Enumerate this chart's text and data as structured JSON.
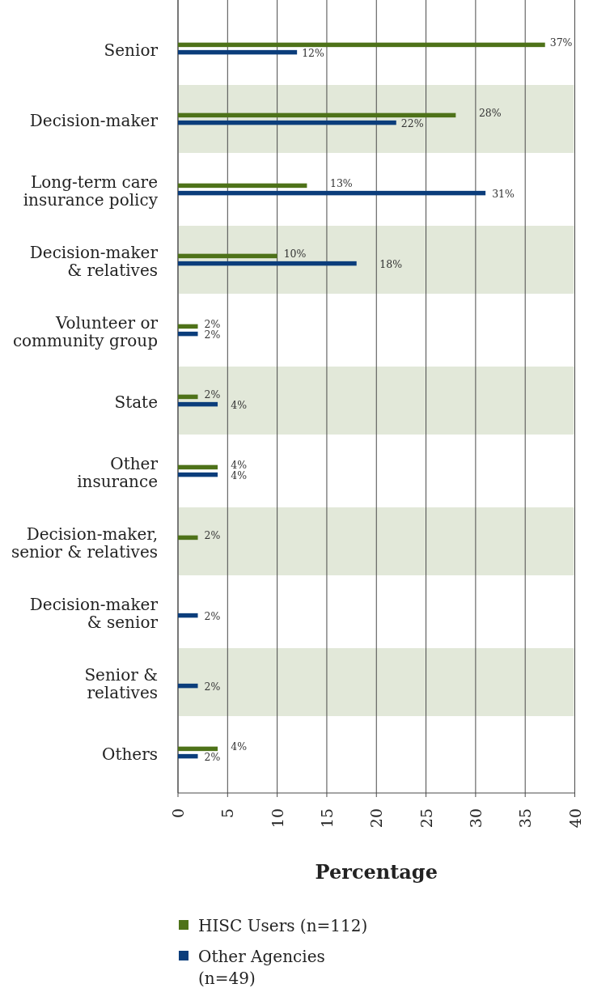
{
  "chart_data": {
    "type": "bar",
    "orientation": "horizontal",
    "categories": [
      "Senior",
      "Decision-maker",
      "Long-term care insurance policy",
      "Decision-maker & relatives",
      "Volunteer or community group",
      "State",
      "Other insurance",
      "Decision-maker, senior & relatives",
      "Decision-maker & senior",
      "Senior & relatives",
      "Others"
    ],
    "series": [
      {
        "name": "HISC Users (n=112)",
        "color": "#4e7219",
        "values": [
          37,
          28,
          13,
          10,
          2,
          2,
          4,
          2,
          null,
          null,
          4
        ],
        "value_labels": [
          "37%",
          "28%",
          "13%",
          "10%",
          "2%",
          "2%",
          "4%",
          "2%",
          null,
          null,
          "4%"
        ]
      },
      {
        "name": "Other Agencies (n=49)",
        "color": "#0b3d7b",
        "values": [
          12,
          22,
          31,
          18,
          2,
          4,
          4,
          null,
          2,
          2,
          2
        ],
        "value_labels": [
          "12%",
          "22%",
          "31%",
          "18%",
          "2%",
          "4%",
          "4%",
          null,
          "2%",
          "2%",
          "2%"
        ]
      }
    ],
    "bands": [
      {
        "axis": "y",
        "from": "Decision-maker",
        "to": "Decision-maker",
        "color": "#e2e8d9"
      },
      {
        "axis": "y",
        "from": "Decision-maker & relatives",
        "to": "Decision-maker & relatives",
        "color": "#e2e8d9"
      },
      {
        "axis": "y",
        "from": "State",
        "to": "State",
        "color": "#e2e8d9"
      },
      {
        "axis": "y",
        "from": "Decision-maker, senior & relatives",
        "to": "Decision-maker, senior & relatives",
        "color": "#e2e8d9"
      },
      {
        "axis": "y",
        "from": "Senior & relatives",
        "to": "Senior & relatives",
        "color": "#e2e8d9"
      }
    ],
    "xlim": [
      0,
      40
    ],
    "xticks": [
      0,
      5,
      10,
      15,
      20,
      25,
      30,
      35,
      40
    ],
    "xlabel": "Percentage",
    "grid": "x",
    "legend": "bottom"
  }
}
